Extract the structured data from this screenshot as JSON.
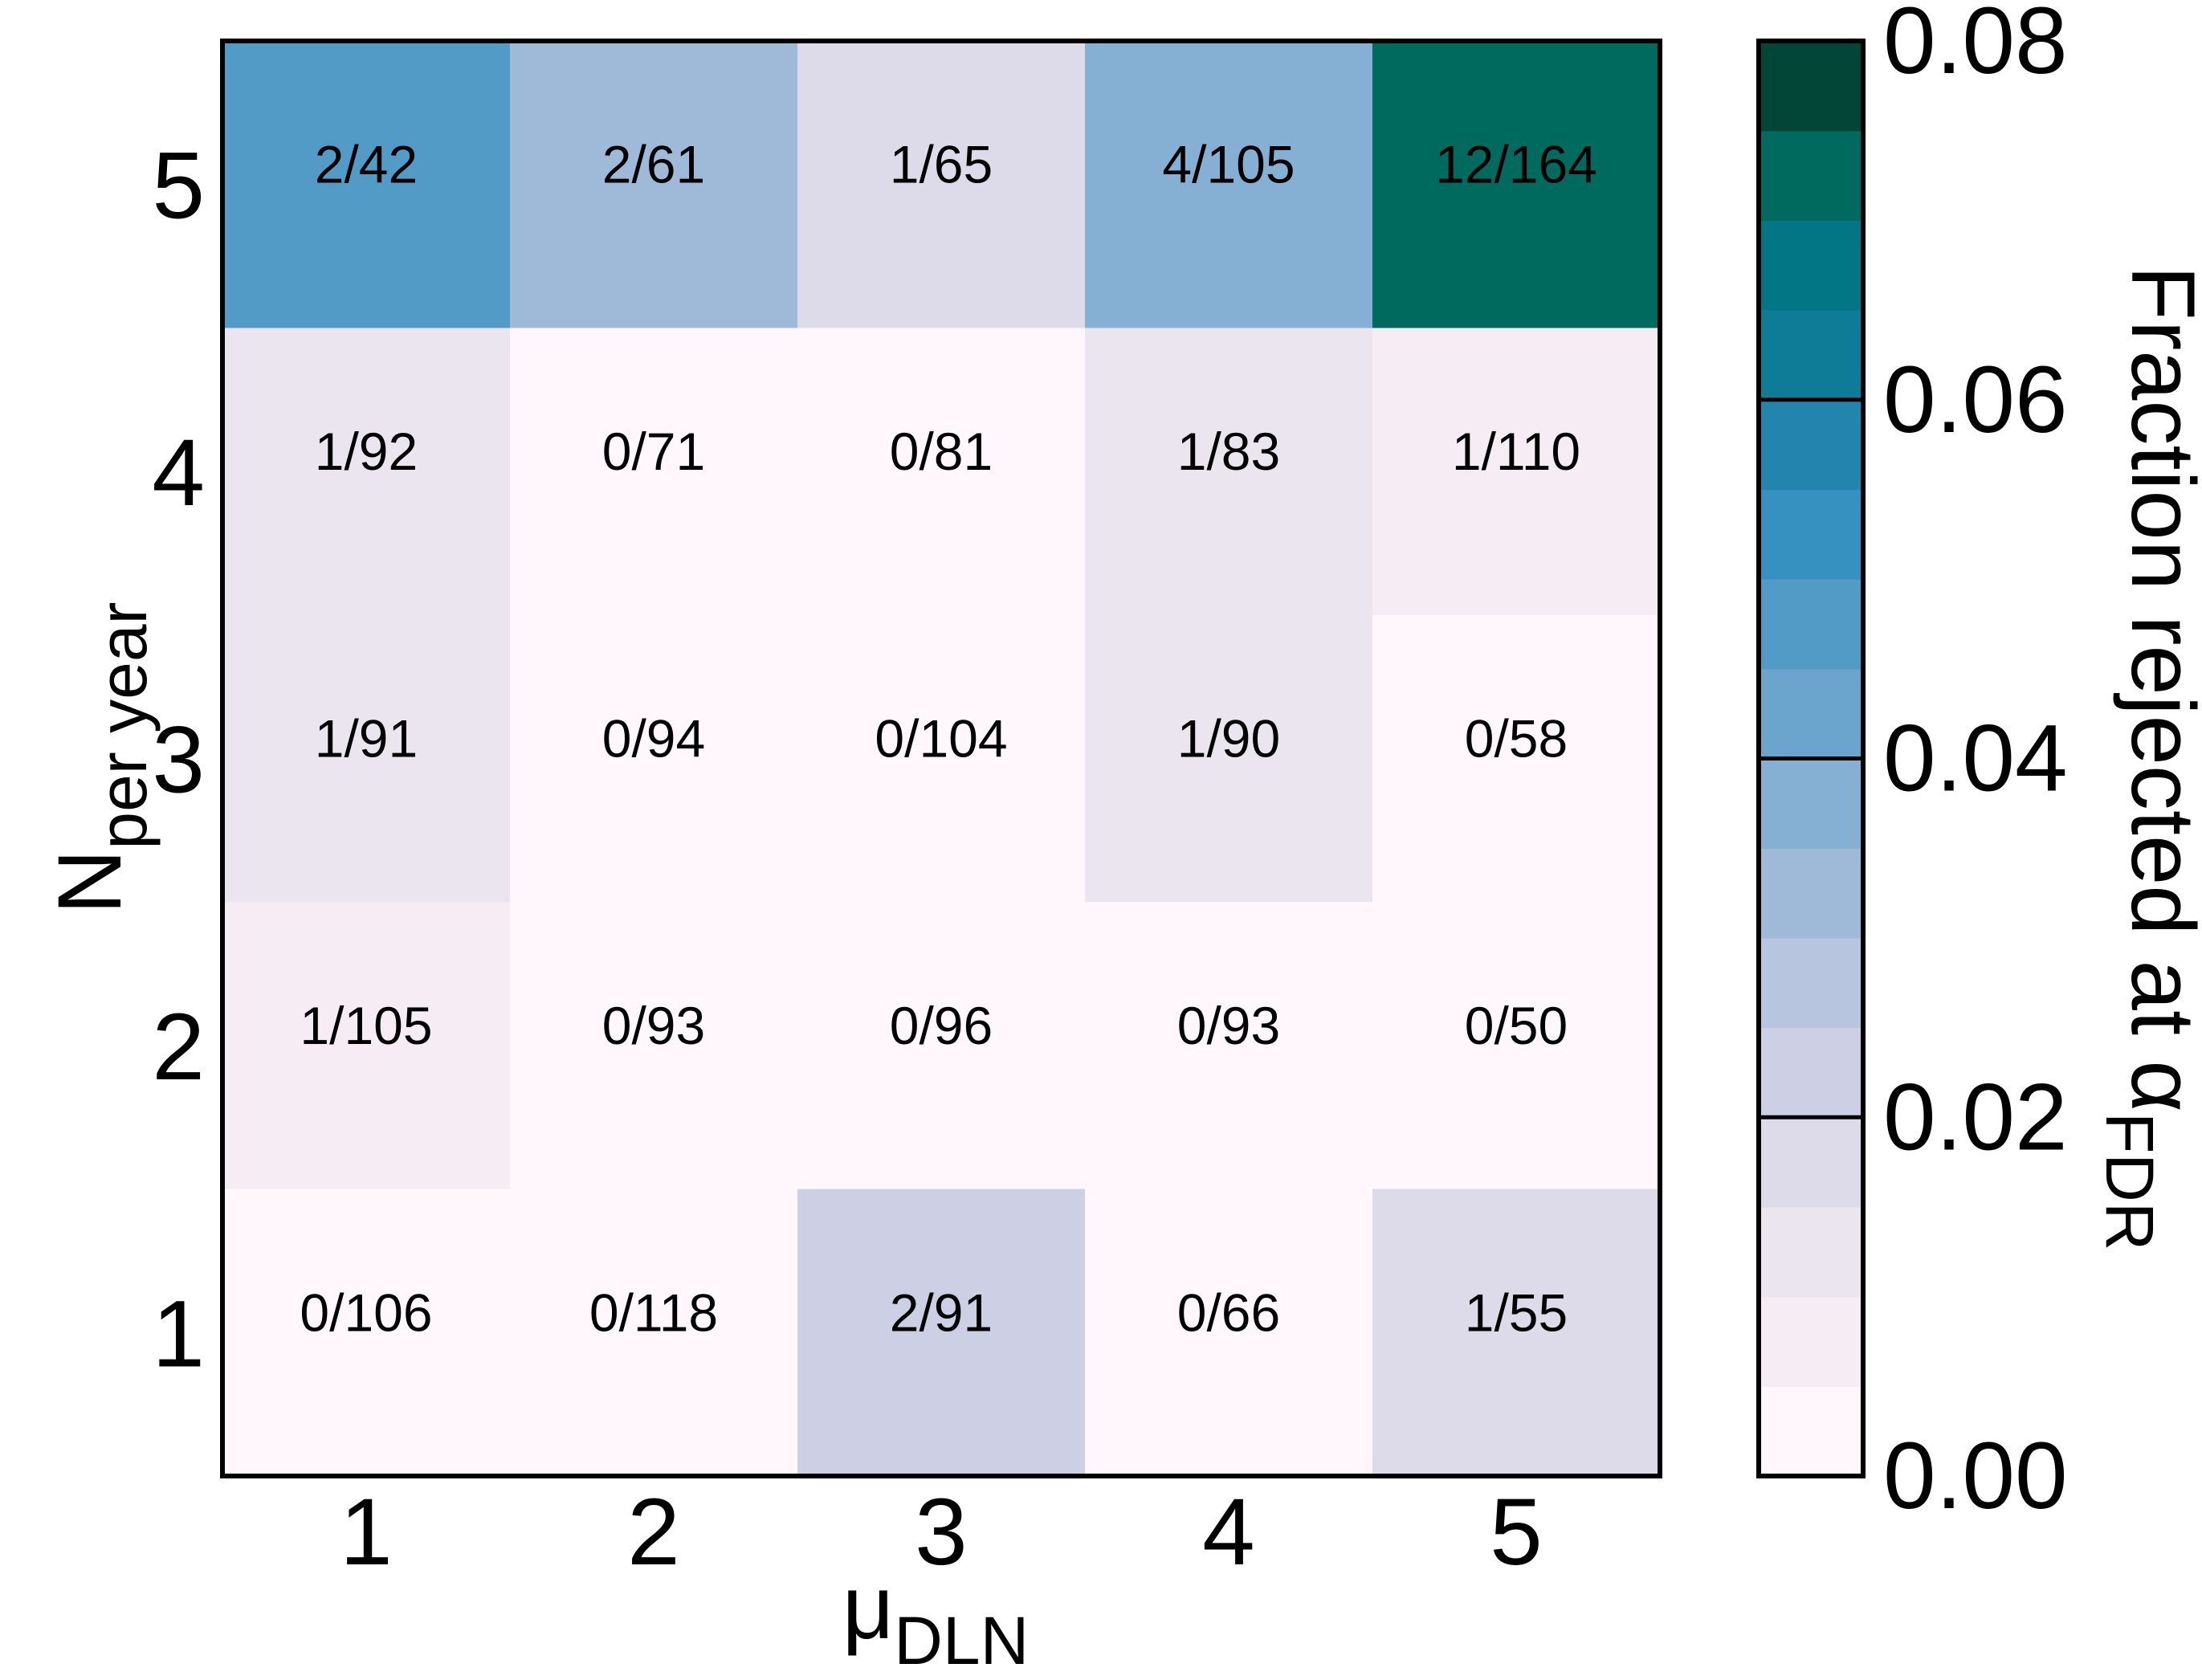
{
  "chart_data": {
    "type": "heatmap",
    "x_categories": [
      "1",
      "2",
      "3",
      "4",
      "5"
    ],
    "y_categories": [
      "1",
      "2",
      "3",
      "4",
      "5"
    ],
    "xlabel": {
      "main": "μ",
      "sub": "DLN"
    },
    "ylabel": {
      "main": "N",
      "sub": "per year"
    },
    "cells": [
      {
        "x": "1",
        "y": "5",
        "label": "2/42",
        "value": 0.0476
      },
      {
        "x": "2",
        "y": "5",
        "label": "2/61",
        "value": 0.0328
      },
      {
        "x": "3",
        "y": "5",
        "label": "1/65",
        "value": 0.0154
      },
      {
        "x": "4",
        "y": "5",
        "label": "4/105",
        "value": 0.0381
      },
      {
        "x": "5",
        "y": "5",
        "label": "12/164",
        "value": 0.0732
      },
      {
        "x": "1",
        "y": "4",
        "label": "1/92",
        "value": 0.0109
      },
      {
        "x": "2",
        "y": "4",
        "label": "0/71",
        "value": 0
      },
      {
        "x": "3",
        "y": "4",
        "label": "0/81",
        "value": 0
      },
      {
        "x": "4",
        "y": "4",
        "label": "1/83",
        "value": 0.012
      },
      {
        "x": "5",
        "y": "4",
        "label": "1/110",
        "value": 0.0091
      },
      {
        "x": "1",
        "y": "3",
        "label": "1/91",
        "value": 0.011
      },
      {
        "x": "2",
        "y": "3",
        "label": "0/94",
        "value": 0
      },
      {
        "x": "3",
        "y": "3",
        "label": "0/104",
        "value": 0
      },
      {
        "x": "4",
        "y": "3",
        "label": "1/90",
        "value": 0.0111
      },
      {
        "x": "5",
        "y": "3",
        "label": "0/58",
        "value": 0
      },
      {
        "x": "1",
        "y": "2",
        "label": "1/105",
        "value": 0.0095
      },
      {
        "x": "2",
        "y": "2",
        "label": "0/93",
        "value": 0
      },
      {
        "x": "3",
        "y": "2",
        "label": "0/96",
        "value": 0
      },
      {
        "x": "4",
        "y": "2",
        "label": "0/93",
        "value": 0
      },
      {
        "x": "5",
        "y": "2",
        "label": "0/50",
        "value": 0
      },
      {
        "x": "1",
        "y": "1",
        "label": "0/106",
        "value": 0
      },
      {
        "x": "2",
        "y": "1",
        "label": "0/118",
        "value": 0
      },
      {
        "x": "3",
        "y": "1",
        "label": "2/91",
        "value": 0.022
      },
      {
        "x": "4",
        "y": "1",
        "label": "0/66",
        "value": 0
      },
      {
        "x": "5",
        "y": "1",
        "label": "1/55",
        "value": 0.0182
      }
    ],
    "colorbar": {
      "label": {
        "main": "Fraction rejected at α",
        "sub": "FDR"
      },
      "range": [
        0,
        0.08
      ],
      "tick_labels": [
        "0.00",
        "0.02",
        "0.04",
        "0.06",
        "0.08"
      ],
      "tick_values": [
        0,
        0.02,
        0.04,
        0.06,
        0.08
      ],
      "levels": 16,
      "colors": [
        "#fff7fb",
        "#f5ecf4",
        "#ebe5f0",
        "#dddbea",
        "#cdd0e5",
        "#b7c5df",
        "#9fbad9",
        "#85b0d3",
        "#6ba5cd",
        "#529bc6",
        "#3690c0",
        "#2384ad",
        "#0e7b97",
        "#037685",
        "#016a5f",
        "#014636"
      ]
    }
  }
}
